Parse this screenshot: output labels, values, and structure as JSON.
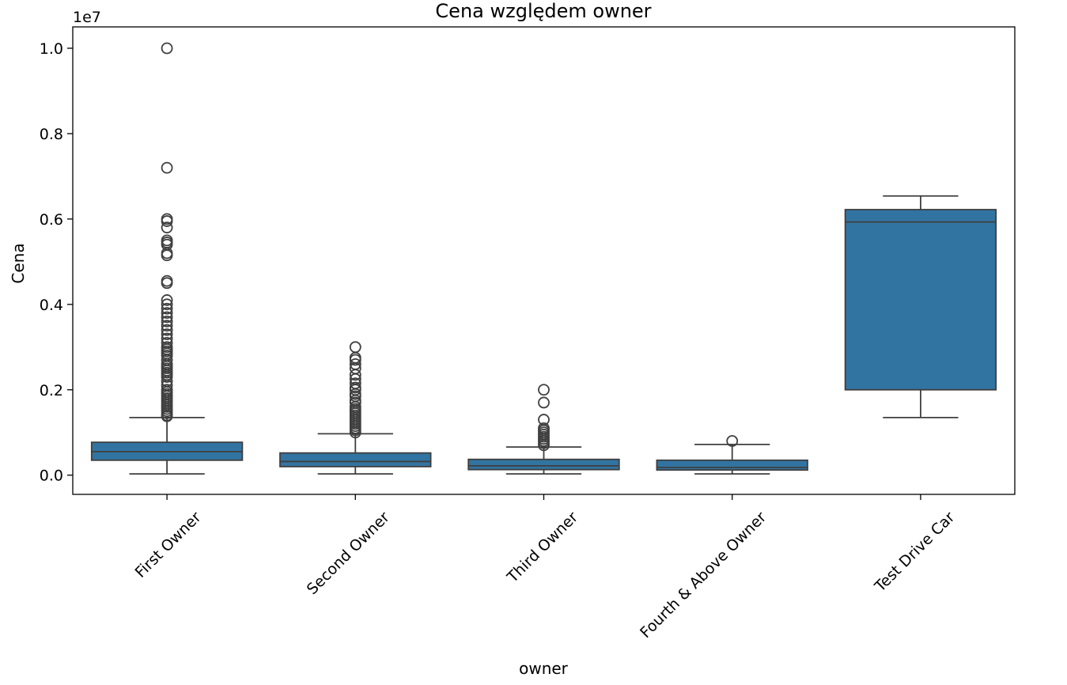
{
  "chart_data": {
    "type": "box",
    "title": "Cena względem owner",
    "xlabel": "owner",
    "ylabel": "Cena",
    "y_offset_label": "1e7",
    "ylim": [
      -0.045,
      1.05
    ],
    "yticks": [
      0.0,
      0.2,
      0.4,
      0.6,
      0.8,
      1.0
    ],
    "ytick_labels": [
      "0.0",
      "0.2",
      "0.4",
      "0.6",
      "0.8",
      "1.0"
    ],
    "grid": false,
    "legend": "none",
    "box_color": "#3274a1",
    "edge_color": "#3f3f3f",
    "categories": [
      "First Owner",
      "Second Owner",
      "Third Owner",
      "Fourth & Above Owner",
      "Test Drive Car"
    ],
    "boxes": [
      {
        "category": "First Owner",
        "whisker_low": 0.003,
        "q1": 0.035,
        "median": 0.055,
        "q3": 0.077,
        "whisker_high": 0.135,
        "outliers": [
          1.0,
          0.72,
          0.6,
          0.595,
          0.58,
          0.55,
          0.545,
          0.54,
          0.52,
          0.515,
          0.455,
          0.45,
          0.41,
          0.4,
          0.39,
          0.38,
          0.37,
          0.36,
          0.35,
          0.34,
          0.33,
          0.32,
          0.31,
          0.3,
          0.295,
          0.29,
          0.285,
          0.28,
          0.27,
          0.26,
          0.255,
          0.25,
          0.245,
          0.24,
          0.235,
          0.23,
          0.22,
          0.21,
          0.2,
          0.195,
          0.19,
          0.185,
          0.18,
          0.175,
          0.17,
          0.165,
          0.16,
          0.155,
          0.15,
          0.145,
          0.14,
          0.138
        ]
      },
      {
        "category": "Second Owner",
        "whisker_low": 0.003,
        "q1": 0.02,
        "median": 0.032,
        "q3": 0.052,
        "whisker_high": 0.097,
        "outliers": [
          0.3,
          0.275,
          0.27,
          0.26,
          0.25,
          0.235,
          0.225,
          0.215,
          0.205,
          0.2,
          0.19,
          0.185,
          0.175,
          0.17,
          0.16,
          0.155,
          0.15,
          0.145,
          0.14,
          0.135,
          0.13,
          0.125,
          0.12,
          0.115,
          0.11,
          0.105,
          0.1
        ]
      },
      {
        "category": "Third Owner",
        "whisker_low": 0.003,
        "q1": 0.013,
        "median": 0.022,
        "q3": 0.037,
        "whisker_high": 0.066,
        "outliers": [
          0.2,
          0.17,
          0.13,
          0.11,
          0.105,
          0.1,
          0.095,
          0.09,
          0.085,
          0.08,
          0.075,
          0.07
        ]
      },
      {
        "category": "Fourth & Above Owner",
        "whisker_low": 0.003,
        "q1": 0.012,
        "median": 0.018,
        "q3": 0.035,
        "whisker_high": 0.072,
        "outliers": [
          0.08
        ]
      },
      {
        "category": "Test Drive Car",
        "whisker_low": 0.135,
        "q1": 0.2,
        "median": 0.593,
        "q3": 0.622,
        "whisker_high": 0.654,
        "outliers": []
      }
    ]
  }
}
